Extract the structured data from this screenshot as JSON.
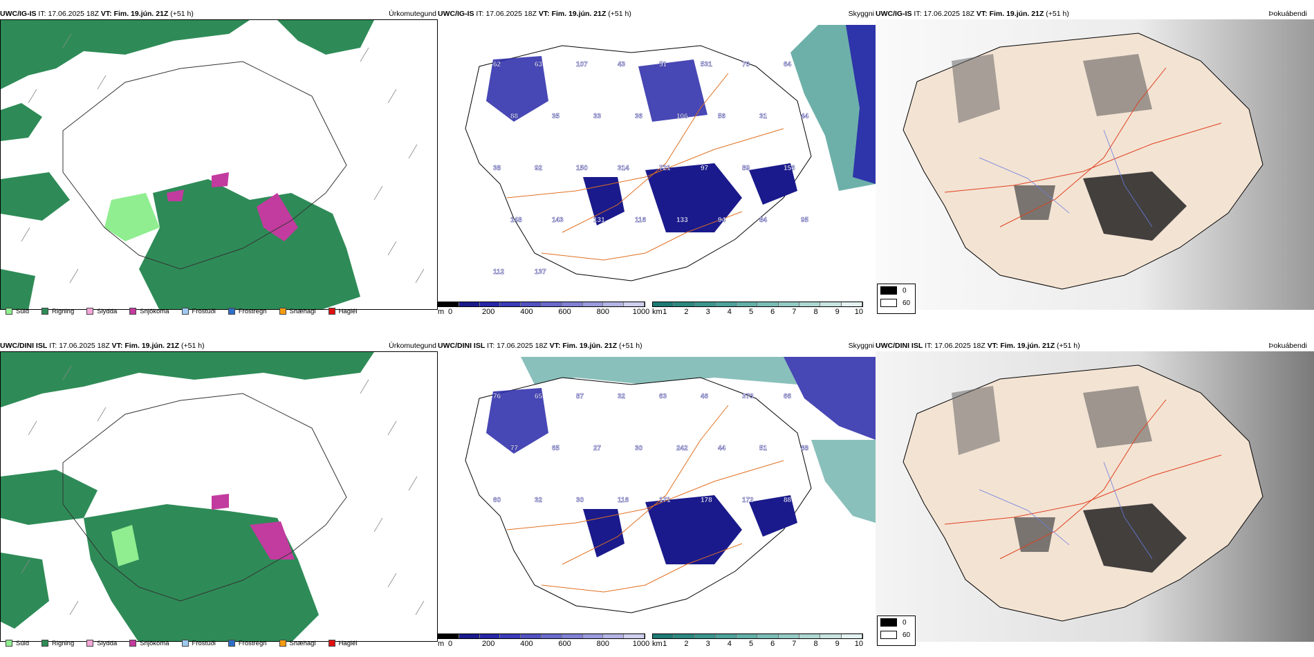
{
  "rows": [
    {
      "model": "UWC/IG-IS",
      "it_label": "IT:",
      "it_value": "17.06.2025 18Z",
      "vt_label": "VT:",
      "vt_value": "Fim. 19.jún. 21Z",
      "offset": "(+51 h)"
    },
    {
      "model": "UWC/DINI ISL",
      "it_label": "IT:",
      "it_value": "17.06.2025 18Z",
      "vt_label": "VT:",
      "vt_value": "Fim. 19.jún. 21Z",
      "offset": "(+51 h)"
    }
  ],
  "panel_titles": {
    "precip": "Úrkomutegund",
    "cloud": "Skyggni",
    "fog": "Þokuábendi"
  },
  "precip_legend": [
    {
      "label": "Súld",
      "color": "#90ee90"
    },
    {
      "label": "Rigning",
      "color": "#2e8b57"
    },
    {
      "label": "Slydda",
      "color": "#f4a6d7"
    },
    {
      "label": "Snjókoma",
      "color": "#c23b9e"
    },
    {
      "label": "Frostúði",
      "color": "#9ec9f0"
    },
    {
      "label": "Frostregn",
      "color": "#2f6fc7"
    },
    {
      "label": "Snæhagl",
      "color": "#f39c12"
    },
    {
      "label": "Haglél",
      "color": "#e01010"
    }
  ],
  "cloud_base_bar": {
    "unit": "m",
    "ticks": [
      "0",
      "200",
      "400",
      "600",
      "800",
      "1000"
    ],
    "colors": [
      "#000000",
      "#1a1a8c",
      "#2727a8",
      "#3b3bb8",
      "#5252c2",
      "#6a6acc",
      "#8080d4",
      "#9a9adc",
      "#b4b4e4",
      "#cfcfee"
    ]
  },
  "visibility_bar": {
    "unit": "km",
    "ticks": [
      "1",
      "2",
      "3",
      "4",
      "5",
      "6",
      "7",
      "8",
      "9",
      "10"
    ],
    "colors": [
      "#1f7a74",
      "#2d8880",
      "#3c968d",
      "#4ea39a",
      "#63b0a8",
      "#7bbdb6",
      "#94cac4",
      "#aed7d2",
      "#c8e4e0",
      "#e3f2f0"
    ]
  },
  "fog_legend": [
    {
      "label": "0",
      "color": "#000000"
    },
    {
      "label": "60",
      "color": "#ffffff"
    }
  ],
  "cloud_labels_row1": [
    "62",
    "63",
    "107",
    "43",
    "51",
    "531",
    "70",
    "64",
    "88",
    "35",
    "33",
    "36",
    "106",
    "56",
    "31",
    "44",
    "38",
    "92",
    "150",
    "314",
    "721",
    "97",
    "89",
    "156",
    "148",
    "143",
    "131",
    "116",
    "133",
    "94",
    "84",
    "95",
    "112",
    "137"
  ],
  "cloud_labels_row2": [
    "76",
    "65",
    "87",
    "32",
    "63",
    "46",
    "373",
    "66",
    "77",
    "65",
    "27",
    "30",
    "242",
    "44",
    "51",
    "88",
    "60",
    "32",
    "30",
    "116",
    "171",
    "178",
    "172",
    "88"
  ]
}
